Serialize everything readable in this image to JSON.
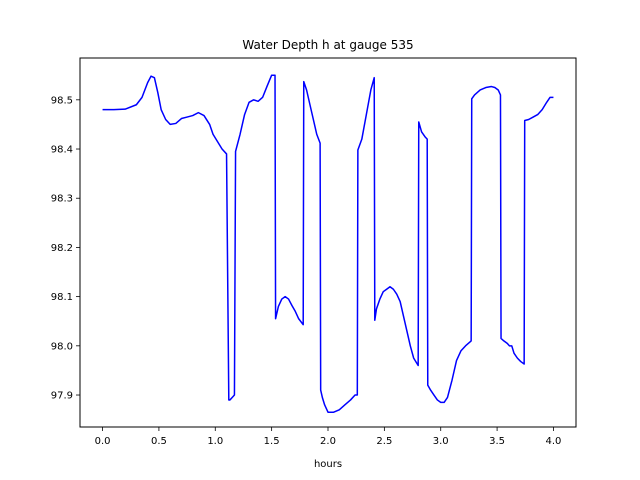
{
  "chart_data": {
    "type": "line",
    "title": "Water Depth h at gauge 535",
    "xlabel": "hours",
    "ylabel": "",
    "xlim": [
      -0.2,
      4.2
    ],
    "ylim": [
      97.835,
      98.585
    ],
    "xticks": [
      0.0,
      0.5,
      1.0,
      1.5,
      2.0,
      2.5,
      3.0,
      3.5,
      4.0
    ],
    "xtick_labels": [
      "0.0",
      "0.5",
      "1.0",
      "1.5",
      "2.0",
      "2.5",
      "3.0",
      "3.5",
      "4.0"
    ],
    "yticks": [
      97.9,
      98.0,
      98.1,
      98.2,
      98.3,
      98.4,
      98.5
    ],
    "ytick_labels": [
      "97.9",
      "98.0",
      "98.1",
      "98.2",
      "98.3",
      "98.4",
      "98.5"
    ],
    "grid": false,
    "line_color": "#0000ff",
    "series": [
      {
        "x": [
          0.0,
          0.1,
          0.2,
          0.3,
          0.35,
          0.4,
          0.43,
          0.46,
          0.49,
          0.52,
          0.56,
          0.6,
          0.65,
          0.7,
          0.75,
          0.8,
          0.85,
          0.9,
          0.95,
          0.98,
          1.02,
          1.06,
          1.1,
          1.12,
          1.13,
          1.15,
          1.17,
          1.18,
          1.22,
          1.26,
          1.3,
          1.34,
          1.38,
          1.42,
          1.46,
          1.5,
          1.53,
          1.535,
          1.56,
          1.59,
          1.62,
          1.65,
          1.68,
          1.71,
          1.74,
          1.78,
          1.785,
          1.81,
          1.84,
          1.87,
          1.9,
          1.93,
          1.935,
          1.95,
          1.97,
          2.0,
          2.05,
          2.1,
          2.15,
          2.2,
          2.24,
          2.26,
          2.265,
          2.3,
          2.34,
          2.38,
          2.41,
          2.415,
          2.43,
          2.46,
          2.49,
          2.52,
          2.55,
          2.58,
          2.61,
          2.64,
          2.67,
          2.7,
          2.73,
          2.76,
          2.8,
          2.805,
          2.83,
          2.86,
          2.88,
          2.885,
          2.91,
          2.94,
          2.97,
          3.0,
          3.03,
          3.06,
          3.1,
          3.14,
          3.18,
          3.22,
          3.27,
          3.275,
          3.3,
          3.35,
          3.4,
          3.45,
          3.48,
          3.51,
          3.53,
          3.535,
          3.56,
          3.59,
          3.61,
          3.63,
          3.65,
          3.68,
          3.71,
          3.74,
          3.745,
          3.78,
          3.82,
          3.86,
          3.9,
          3.94,
          3.97,
          4.0
        ],
        "y": [
          98.48,
          98.48,
          98.481,
          98.49,
          98.505,
          98.535,
          98.548,
          98.545,
          98.515,
          98.48,
          98.46,
          98.45,
          98.452,
          98.462,
          98.465,
          98.468,
          98.474,
          98.468,
          98.45,
          98.43,
          98.415,
          98.4,
          98.39,
          97.89,
          97.89,
          97.895,
          97.9,
          98.395,
          98.43,
          98.47,
          98.495,
          98.5,
          98.497,
          98.505,
          98.528,
          98.55,
          98.55,
          98.055,
          98.08,
          98.095,
          98.1,
          98.095,
          98.082,
          98.07,
          98.055,
          98.043,
          98.537,
          98.52,
          98.49,
          98.46,
          98.43,
          98.412,
          97.91,
          97.895,
          97.88,
          97.865,
          97.865,
          97.87,
          97.88,
          97.89,
          97.9,
          97.9,
          98.398,
          98.42,
          98.47,
          98.52,
          98.545,
          98.052,
          98.075,
          98.095,
          98.11,
          98.115,
          98.12,
          98.115,
          98.105,
          98.09,
          98.06,
          98.03,
          98.0,
          97.975,
          97.96,
          98.455,
          98.435,
          98.425,
          98.42,
          97.92,
          97.91,
          97.9,
          97.89,
          97.885,
          97.885,
          97.895,
          97.93,
          97.97,
          97.99,
          98.0,
          98.01,
          98.502,
          98.51,
          98.52,
          98.525,
          98.527,
          98.525,
          98.52,
          98.51,
          98.015,
          98.01,
          98.005,
          98.0,
          98.0,
          97.985,
          97.975,
          97.968,
          97.963,
          98.458,
          98.46,
          98.465,
          98.47,
          98.48,
          98.495,
          98.505,
          98.505
        ]
      }
    ]
  }
}
